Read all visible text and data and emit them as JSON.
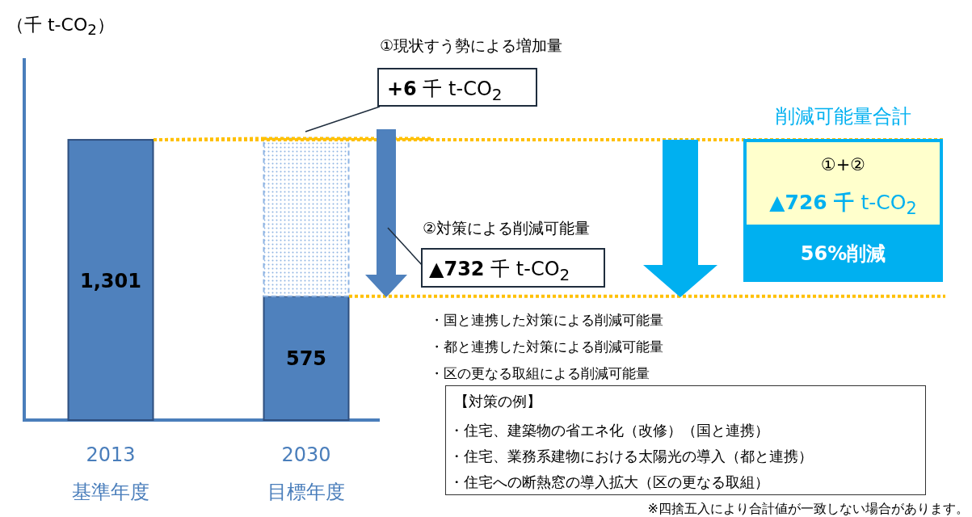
{
  "chart_data": {
    "type": "bar",
    "stacked": true,
    "ylabel": "（千 t-CO$_{2}$）",
    "categories": [
      "2013 基準年度",
      "2030 目標年度"
    ],
    "ylim": [
      0,
      1680
    ],
    "series": [
      {
        "color": "#4f81bd",
        "values": [
          1301,
          575
        ],
        "value_labels": [
          "1,301",
          "575"
        ]
      },
      {
        "color": "#8eb4e3",
        "values": [
          null,
          732
        ]
      }
    ],
    "ref_lines": [
      {
        "axis": "y",
        "value": 1301,
        "color": "#ffc000",
        "line_style": "dotted"
      },
      {
        "axis": "y",
        "value": 1307,
        "color": "#ffc000",
        "line_style": "dotted"
      },
      {
        "axis": "y",
        "value": 575,
        "color": "#ffc000",
        "line_style": "dotted"
      }
    ],
    "annotations": [
      "①現状すう勢による増加量",
      "**+6** 千 t-CO$_{2}$",
      "②対策による削減可能量",
      "**▲732** 千 t-CO$_{2}$",
      "・国と連携した対策による削減可能量",
      "・都と連携した対策による削減可能量",
      "・区の更なる取組による削減可能量",
      "【対策の例】",
      "・住宅、建築物の省エネ化（改修）（国と連携）",
      "・住宅、業務系建物における太陽光の導入（都と連携）",
      "・住宅への断熱窓の導入拡大（区の更なる取組）",
      "※四捨五入により合計値が一致しない場合があります。",
      "削減可能量合計",
      "①+②",
      "**▲726 千** t-CO$_{2}$",
      "56%削減"
    ]
  }
}
